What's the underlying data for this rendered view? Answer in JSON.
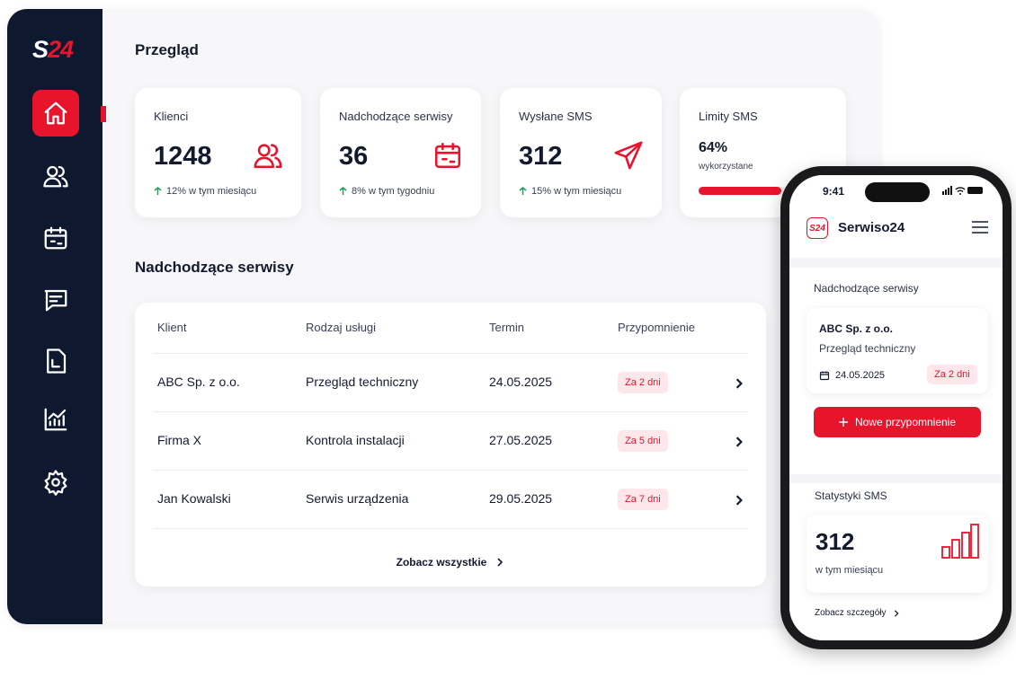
{
  "sidebar": {
    "logo_s": "S",
    "logo_num": "24"
  },
  "dashboard": {
    "title": "Przegląd",
    "cards": [
      {
        "label": "Klienci",
        "value": "1248",
        "trend": "12% w tym miesiącu"
      },
      {
        "label": "Nadchodzące serwisy",
        "value": "36",
        "trend": "8% w tym tygodniu"
      },
      {
        "label": "Wysłane SMS",
        "value": "312",
        "trend": "15% w tym miesiącu"
      },
      {
        "label": "Limity SMS",
        "value": 64,
        "value_label": "64%",
        "caption": "wykorzystane"
      }
    ]
  },
  "upcoming": {
    "title": "Nadchodzące serwisy",
    "columns": [
      "Klient",
      "Rodzaj usługi",
      "Termin",
      "Przypomnienie"
    ],
    "rows": [
      [
        "ABC Sp. z o.o.",
        "Przegląd techniczny",
        "24.05.2025",
        "Za 2 dni"
      ],
      [
        "Firma X",
        "Kontrola instalacji",
        "27.05.2025",
        "Za 5 dni"
      ],
      [
        "Jan Kowalski",
        "Serwis urządzenia",
        "29.05.2025",
        "Za 7 dni"
      ]
    ],
    "see_all": "Zobacz wszystkie"
  },
  "phone": {
    "time": "9:41",
    "logo_s": "S",
    "logo_num": "24",
    "app_name": "Serwiso24",
    "upcoming_title": "Nadchodzące serwisy",
    "card": {
      "client": "ABC Sp. z o.o.",
      "service": "Przegląd techniczny",
      "date": "24.05.2025",
      "badge": "Za 2 dni"
    },
    "button": "Nowe przypomnienie",
    "stats_title": "Statystyki SMS",
    "stats_value": "312",
    "stats_caption": "w tym miesiącu",
    "details_link": "Zobacz szczegóły"
  }
}
